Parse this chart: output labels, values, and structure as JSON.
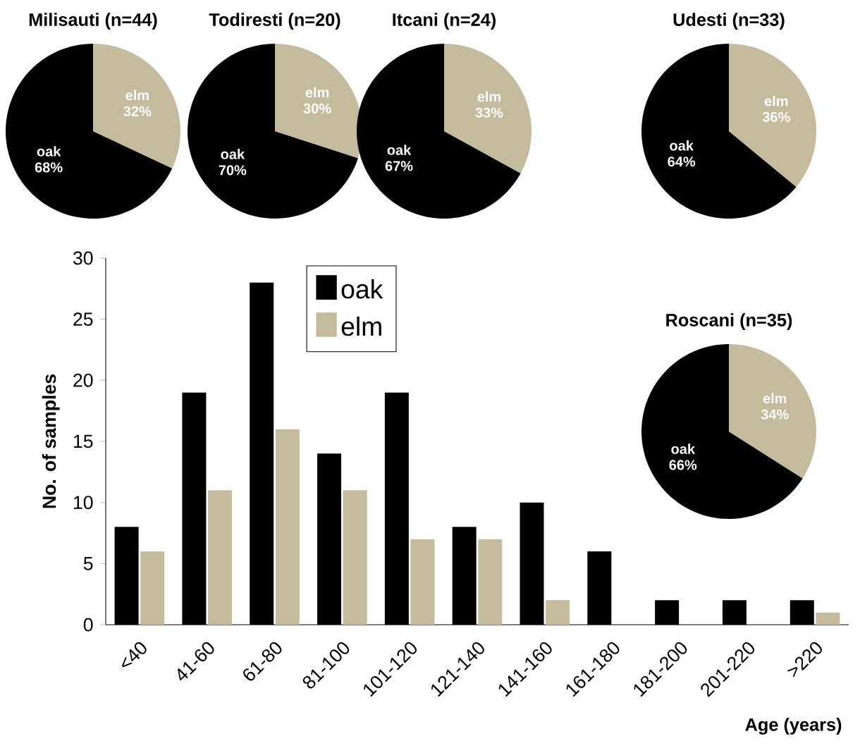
{
  "chart_data": [
    {
      "type": "pie",
      "title": "Milisauti (n=44)",
      "categories": [
        "oak",
        "elm"
      ],
      "values": [
        68,
        32
      ],
      "colors": [
        "#000000",
        "#c4ba9c"
      ],
      "value_labels": [
        "68%",
        "32%"
      ]
    },
    {
      "type": "pie",
      "title": "Todiresti (n=20)",
      "categories": [
        "oak",
        "elm"
      ],
      "values": [
        70,
        30
      ],
      "colors": [
        "#000000",
        "#c4ba9c"
      ],
      "value_labels": [
        "70%",
        "30%"
      ]
    },
    {
      "type": "pie",
      "title": "Itcani (n=24)",
      "categories": [
        "oak",
        "elm"
      ],
      "values": [
        67,
        33
      ],
      "colors": [
        "#000000",
        "#c4ba9c"
      ],
      "value_labels": [
        "67%",
        "33%"
      ]
    },
    {
      "type": "pie",
      "title": "Udesti (n=33)",
      "categories": [
        "oak",
        "elm"
      ],
      "values": [
        64,
        36
      ],
      "colors": [
        "#000000",
        "#c4ba9c"
      ],
      "value_labels": [
        "64%",
        "36%"
      ]
    },
    {
      "type": "pie",
      "title": "Roscani (n=35)",
      "categories": [
        "oak",
        "elm"
      ],
      "values": [
        66,
        34
      ],
      "colors": [
        "#000000",
        "#c4ba9c"
      ],
      "value_labels": [
        "66%",
        "34%"
      ]
    },
    {
      "type": "bar",
      "xlabel": "Age (years)",
      "ylabel": "No. of samples",
      "categories": [
        "<40",
        "41-60",
        "61-80",
        "81-100",
        "101-120",
        "121-140",
        "141-160",
        "161-180",
        "181-200",
        "201-220",
        ">220"
      ],
      "series": [
        {
          "name": "oak",
          "color": "#000000",
          "values": [
            8,
            19,
            28,
            14,
            19,
            8,
            10,
            6,
            2,
            2,
            2
          ]
        },
        {
          "name": "elm",
          "color": "#c4ba9c",
          "values": [
            6,
            11,
            16,
            11,
            7,
            7,
            2,
            0,
            0,
            0,
            1
          ]
        }
      ],
      "ylim": [
        0,
        30
      ],
      "yticks": [
        0,
        5,
        10,
        15,
        20,
        25,
        30
      ],
      "legend": "top left"
    }
  ]
}
